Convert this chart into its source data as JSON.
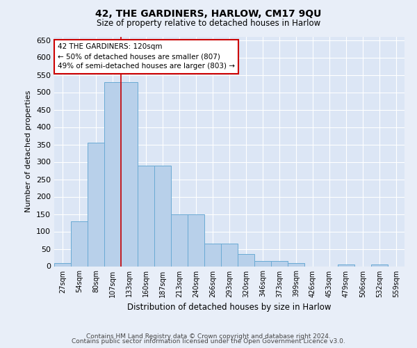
{
  "title": "42, THE GARDINERS, HARLOW, CM17 9QU",
  "subtitle": "Size of property relative to detached houses in Harlow",
  "xlabel": "Distribution of detached houses by size in Harlow",
  "ylabel": "Number of detached properties",
  "categories": [
    "27sqm",
    "54sqm",
    "80sqm",
    "107sqm",
    "133sqm",
    "160sqm",
    "187sqm",
    "213sqm",
    "240sqm",
    "266sqm",
    "293sqm",
    "320sqm",
    "346sqm",
    "373sqm",
    "399sqm",
    "426sqm",
    "453sqm",
    "479sqm",
    "506sqm",
    "532sqm",
    "559sqm"
  ],
  "bar_values": [
    10,
    130,
    355,
    530,
    530,
    290,
    290,
    150,
    150,
    65,
    65,
    35,
    15,
    15,
    10,
    0,
    0,
    5,
    0,
    5,
    0
  ],
  "bar_color": "#b8d0ea",
  "bar_edge_color": "#6aaad4",
  "vline_x_index": 3.5,
  "vline_color": "#cc0000",
  "annotation_text": "42 THE GARDINERS: 120sqm\n← 50% of detached houses are smaller (807)\n49% of semi-detached houses are larger (803) →",
  "annotation_box_color": "#cc0000",
  "ylim": [
    0,
    660
  ],
  "yticks": [
    0,
    50,
    100,
    150,
    200,
    250,
    300,
    350,
    400,
    450,
    500,
    550,
    600,
    650
  ],
  "bg_color": "#e8eef8",
  "plot_bg_color": "#dce6f5",
  "grid_color": "#ffffff",
  "footer1": "Contains HM Land Registry data © Crown copyright and database right 2024.",
  "footer2": "Contains public sector information licensed under the Open Government Licence v3.0."
}
